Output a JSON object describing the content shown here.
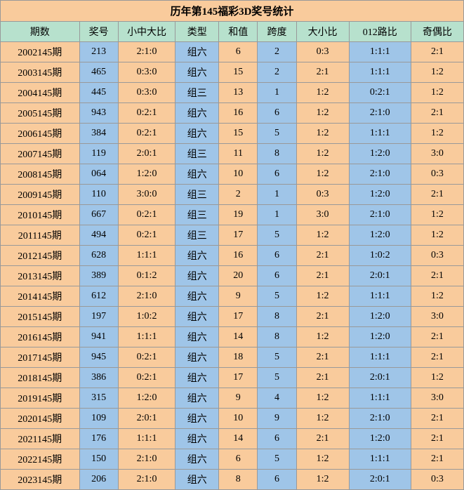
{
  "title": "历年第145福彩3D奖号统计",
  "columns": [
    "期数",
    "奖号",
    "小中大比",
    "类型",
    "和值",
    "跨度",
    "大小比",
    "012路比",
    "奇偶比"
  ],
  "col_classes": [
    "col-period",
    "col-num",
    "col-ratio1",
    "col-type",
    "col-sum",
    "col-span",
    "col-ratio2",
    "col-ratio3",
    "col-ratio4"
  ],
  "colors": {
    "orange": "#f9cb9c",
    "blue": "#9fc5e8",
    "green": "#b7e1cd",
    "border": "#999999"
  },
  "cell_pattern": [
    "orange",
    "blue",
    "orange",
    "blue",
    "orange",
    "blue",
    "orange",
    "blue",
    "orange"
  ],
  "rows": [
    [
      "2002145期",
      "213",
      "2:1:0",
      "组六",
      "6",
      "2",
      "0:3",
      "1:1:1",
      "2:1"
    ],
    [
      "2003145期",
      "465",
      "0:3:0",
      "组六",
      "15",
      "2",
      "2:1",
      "1:1:1",
      "1:2"
    ],
    [
      "2004145期",
      "445",
      "0:3:0",
      "组三",
      "13",
      "1",
      "1:2",
      "0:2:1",
      "1:2"
    ],
    [
      "2005145期",
      "943",
      "0:2:1",
      "组六",
      "16",
      "6",
      "1:2",
      "2:1:0",
      "2:1"
    ],
    [
      "2006145期",
      "384",
      "0:2:1",
      "组六",
      "15",
      "5",
      "1:2",
      "1:1:1",
      "1:2"
    ],
    [
      "2007145期",
      "119",
      "2:0:1",
      "组三",
      "11",
      "8",
      "1:2",
      "1:2:0",
      "3:0"
    ],
    [
      "2008145期",
      "064",
      "1:2:0",
      "组六",
      "10",
      "6",
      "1:2",
      "2:1:0",
      "0:3"
    ],
    [
      "2009145期",
      "110",
      "3:0:0",
      "组三",
      "2",
      "1",
      "0:3",
      "1:2:0",
      "2:1"
    ],
    [
      "2010145期",
      "667",
      "0:2:1",
      "组三",
      "19",
      "1",
      "3:0",
      "2:1:0",
      "1:2"
    ],
    [
      "2011145期",
      "494",
      "0:2:1",
      "组三",
      "17",
      "5",
      "1:2",
      "1:2:0",
      "1:2"
    ],
    [
      "2012145期",
      "628",
      "1:1:1",
      "组六",
      "16",
      "6",
      "2:1",
      "1:0:2",
      "0:3"
    ],
    [
      "2013145期",
      "389",
      "0:1:2",
      "组六",
      "20",
      "6",
      "2:1",
      "2:0:1",
      "2:1"
    ],
    [
      "2014145期",
      "612",
      "2:1:0",
      "组六",
      "9",
      "5",
      "1:2",
      "1:1:1",
      "1:2"
    ],
    [
      "2015145期",
      "197",
      "1:0:2",
      "组六",
      "17",
      "8",
      "2:1",
      "1:2:0",
      "3:0"
    ],
    [
      "2016145期",
      "941",
      "1:1:1",
      "组六",
      "14",
      "8",
      "1:2",
      "1:2:0",
      "2:1"
    ],
    [
      "2017145期",
      "945",
      "0:2:1",
      "组六",
      "18",
      "5",
      "2:1",
      "1:1:1",
      "2:1"
    ],
    [
      "2018145期",
      "386",
      "0:2:1",
      "组六",
      "17",
      "5",
      "2:1",
      "2:0:1",
      "1:2"
    ],
    [
      "2019145期",
      "315",
      "1:2:0",
      "组六",
      "9",
      "4",
      "1:2",
      "1:1:1",
      "3:0"
    ],
    [
      "2020145期",
      "109",
      "2:0:1",
      "组六",
      "10",
      "9",
      "1:2",
      "2:1:0",
      "2:1"
    ],
    [
      "2021145期",
      "176",
      "1:1:1",
      "组六",
      "14",
      "6",
      "2:1",
      "1:2:0",
      "2:1"
    ],
    [
      "2022145期",
      "150",
      "2:1:0",
      "组六",
      "6",
      "5",
      "1:2",
      "1:1:1",
      "2:1"
    ],
    [
      "2023145期",
      "206",
      "2:1:0",
      "组六",
      "8",
      "6",
      "1:2",
      "2:0:1",
      "0:3"
    ]
  ]
}
